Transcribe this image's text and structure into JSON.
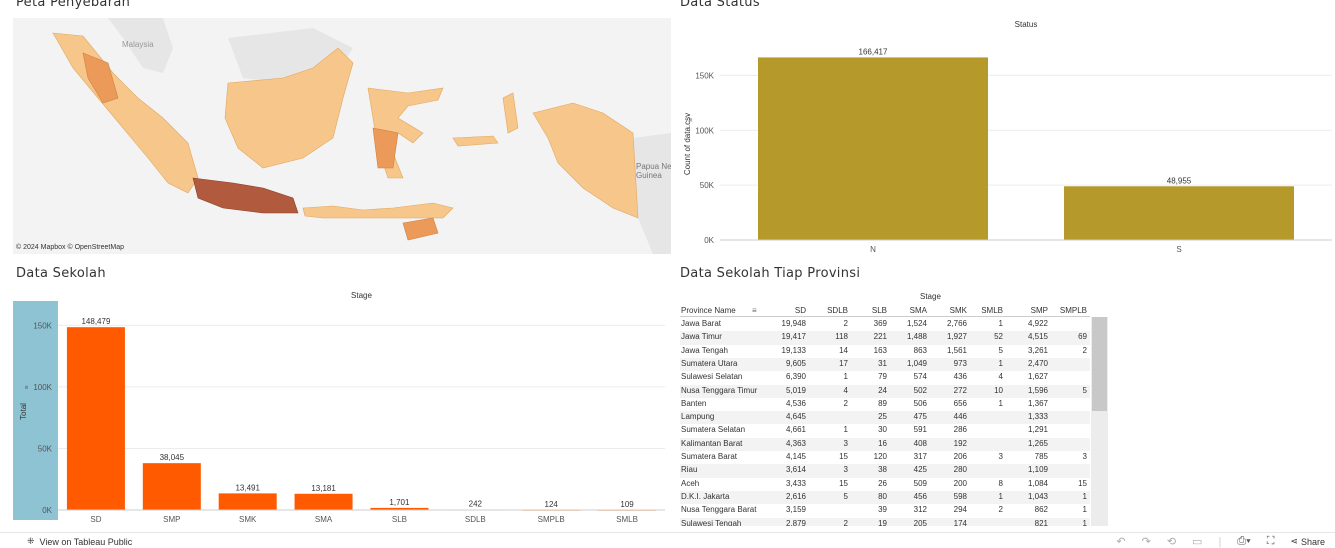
{
  "titles": {
    "map": "Peta Penyebaran",
    "status": "Data Status",
    "stage": "Data Sekolah",
    "province": "Data Sekolah Tiap Provinsi"
  },
  "map": {
    "attribution": "© 2024 Mapbox  © OpenStreetMap",
    "labels": {
      "malaysia": "Malaysia",
      "png": "Papua Ne\nGuinea"
    },
    "colors": {
      "low": "#f7c68a",
      "mid": "#eb9a59",
      "high": "#b15a3e",
      "land_other": "#e6e6e6",
      "sea": "#f3f3f3"
    }
  },
  "chart_data": [
    {
      "type": "bar",
      "title": "Status",
      "xlabel": "",
      "ylabel": "Count of data.csv",
      "categories": [
        "N",
        "S"
      ],
      "values": [
        166417,
        48955
      ],
      "value_labels": [
        "166,417",
        "48,955"
      ],
      "ylim": [
        0,
        175000
      ],
      "yticks": [
        0,
        50000,
        100000,
        150000
      ],
      "ytick_labels": [
        "0K",
        "50K",
        "100K",
        "150K"
      ],
      "color": "#b5992b",
      "grid": true
    },
    {
      "type": "bar",
      "title": "Stage",
      "xlabel": "",
      "ylabel": "Total",
      "categories": [
        "SD",
        "SMP",
        "SMK",
        "SMA",
        "SLB",
        "SDLB",
        "SMPLB",
        "SMLB"
      ],
      "values": [
        148479,
        38045,
        13491,
        13181,
        1701,
        242,
        124,
        109
      ],
      "value_labels": [
        "148,479",
        "38,045",
        "13,491",
        "13,181",
        "1,701",
        "242",
        "124",
        "109"
      ],
      "ylim": [
        0,
        160000
      ],
      "yticks": [
        0,
        50000,
        100000,
        150000
      ],
      "ytick_labels": [
        "0K",
        "50K",
        "100K",
        "150K"
      ],
      "color": "#ff5a00",
      "axis_bg": "#8ec3d4",
      "grid": true
    }
  ],
  "province_table": {
    "stage_header": "Stage",
    "columns": [
      "Province Name",
      "SD",
      "SDLB",
      "SLB",
      "SMA",
      "SMK",
      "SMLB",
      "SMP",
      "SMPLB"
    ],
    "rows": [
      [
        "Jawa Barat",
        "19,948",
        "2",
        "369",
        "1,524",
        "2,766",
        "1",
        "4,922",
        ""
      ],
      [
        "Jawa Timur",
        "19,417",
        "118",
        "221",
        "1,488",
        "1,927",
        "52",
        "4,515",
        "69"
      ],
      [
        "Jawa Tengah",
        "19,133",
        "14",
        "163",
        "863",
        "1,561",
        "5",
        "3,261",
        "2"
      ],
      [
        "Sumatera Utara",
        "9,605",
        "17",
        "31",
        "1,049",
        "973",
        "1",
        "2,470",
        ""
      ],
      [
        "Sulawesi Selatan",
        "6,390",
        "1",
        "79",
        "574",
        "436",
        "4",
        "1,627",
        ""
      ],
      [
        "Nusa Tenggara Timur",
        "5,019",
        "4",
        "24",
        "502",
        "272",
        "10",
        "1,596",
        "5"
      ],
      [
        "Banten",
        "4,536",
        "2",
        "89",
        "506",
        "656",
        "1",
        "1,367",
        ""
      ],
      [
        "Lampung",
        "4,645",
        "",
        "25",
        "475",
        "446",
        "",
        "1,333",
        ""
      ],
      [
        "Sumatera Selatan",
        "4,661",
        "1",
        "30",
        "591",
        "286",
        "",
        "1,291",
        ""
      ],
      [
        "Kalimantan Barat",
        "4,363",
        "3",
        "16",
        "408",
        "192",
        "",
        "1,265",
        ""
      ],
      [
        "Sumatera Barat",
        "4,145",
        "15",
        "120",
        "317",
        "206",
        "3",
        "785",
        "3"
      ],
      [
        "Riau",
        "3,614",
        "3",
        "38",
        "425",
        "280",
        "",
        "1,109",
        ""
      ],
      [
        "Aceh",
        "3,433",
        "15",
        "26",
        "509",
        "200",
        "8",
        "1,084",
        "15"
      ],
      [
        "D.K.I. Jakarta",
        "2,616",
        "5",
        "80",
        "456",
        "598",
        "1",
        "1,043",
        "1"
      ],
      [
        "Nusa Tenggara Barat",
        "3,159",
        "",
        "39",
        "312",
        "294",
        "2",
        "862",
        "1"
      ],
      [
        "Sulawesi Tengah",
        "2,879",
        "2",
        "19",
        "205",
        "174",
        "",
        "821",
        "1"
      ]
    ]
  },
  "toolbar": {
    "view_label": "View on Tableau Public",
    "share_label": "Share"
  }
}
